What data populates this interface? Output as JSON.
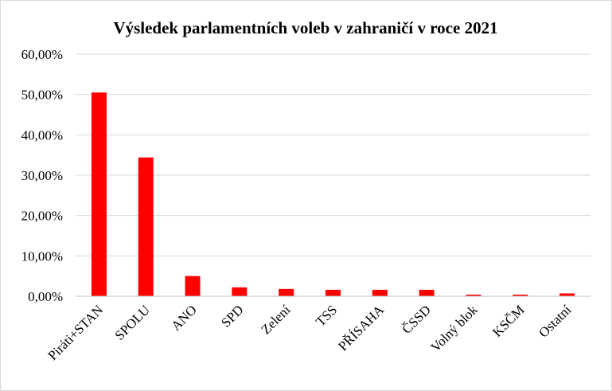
{
  "chart_data": {
    "type": "bar",
    "title": "Výsledek parlamentních voleb v zahraničí v roce 2021",
    "xlabel": "",
    "ylabel": "",
    "categories": [
      "Piráti+STAN",
      "SPOLU",
      "ANO",
      "SPD",
      "Zelení",
      "TSS",
      "PŘÍSAHA",
      "ČSSD",
      "Volný blok",
      "KSČM",
      "Ostatní"
    ],
    "values": [
      50.5,
      34.4,
      5.0,
      2.2,
      1.8,
      1.6,
      1.6,
      1.6,
      0.4,
      0.4,
      0.7
    ],
    "ylim": [
      0,
      60
    ],
    "yticks": [
      "0,00%",
      "10,00%",
      "20,00%",
      "30,00%",
      "40,00%",
      "50,00%",
      "60,00%"
    ],
    "ytick_values": [
      0,
      10,
      20,
      30,
      40,
      50,
      60
    ],
    "grid": true,
    "legend": "none",
    "bar_color": "#ff0000"
  }
}
